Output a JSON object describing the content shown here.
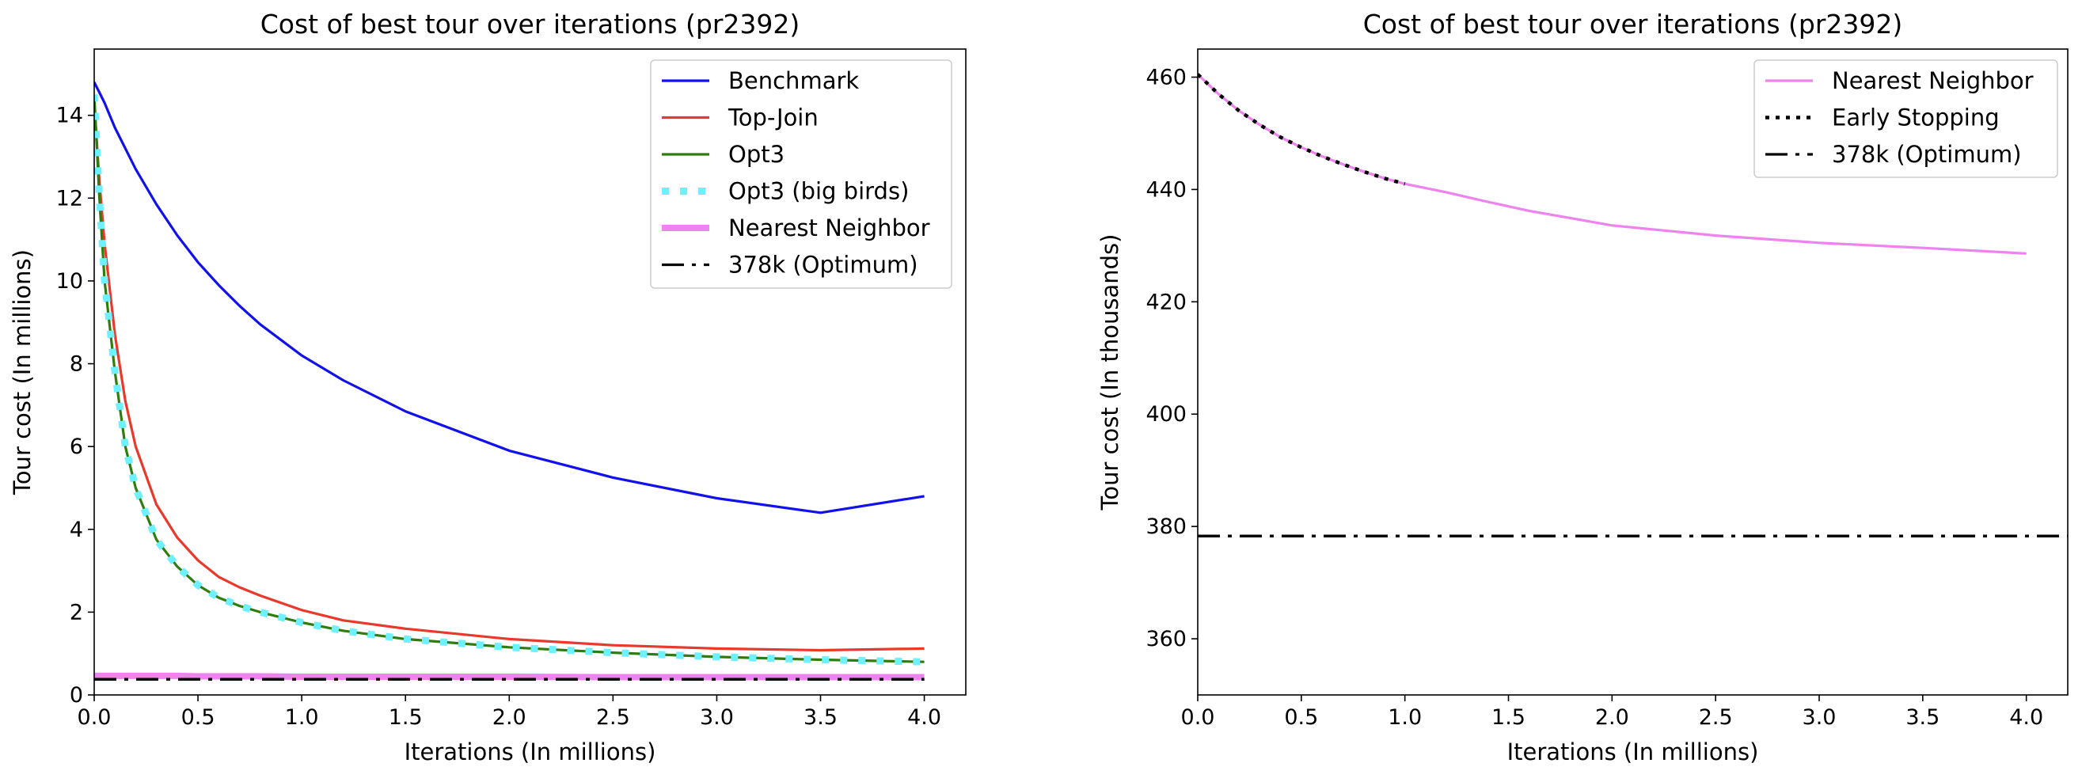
{
  "chart_data": [
    {
      "type": "line",
      "title": "Cost of best tour over iterations (pr2392)",
      "xlabel": "Iterations (In millions)",
      "ylabel": "Tour cost (In millions)",
      "xlim": [
        0,
        4.2
      ],
      "ylim": [
        0,
        15.6
      ],
      "xticks": [
        "0.0",
        "0.5",
        "1.0",
        "1.5",
        "2.0",
        "2.5",
        "3.0",
        "3.5",
        "4.0"
      ],
      "yticks": [
        "0",
        "2",
        "4",
        "6",
        "8",
        "10",
        "12",
        "14"
      ],
      "legend_position": "upper right",
      "grid": false,
      "x": [
        0,
        0.025,
        0.05,
        0.1,
        0.15,
        0.2,
        0.3,
        0.4,
        0.5,
        0.6,
        0.7,
        0.8,
        1.0,
        1.2,
        1.5,
        2.0,
        2.5,
        3.0,
        3.5,
        4.0
      ],
      "series": [
        {
          "name": "Benchmark",
          "color": "#1111ee",
          "style": "solid",
          "values": [
            14.8,
            14.55,
            14.3,
            13.7,
            13.2,
            12.7,
            11.85,
            11.1,
            10.45,
            9.9,
            9.4,
            8.95,
            8.2,
            7.6,
            6.85,
            5.9,
            5.25,
            4.75,
            4.4,
            4.8
          ]
        },
        {
          "name": "Top-Join",
          "color": "#e8392a",
          "style": "solid",
          "values": [
            14.3,
            12.4,
            10.9,
            8.7,
            7.1,
            6.0,
            4.6,
            3.8,
            3.25,
            2.85,
            2.6,
            2.4,
            2.05,
            1.8,
            1.6,
            1.35,
            1.2,
            1.12,
            1.08,
            1.12
          ]
        },
        {
          "name": "Opt3",
          "color": "#2e7d0e",
          "style": "solid",
          "values": [
            14.5,
            12.0,
            10.0,
            7.8,
            6.0,
            5.0,
            3.75,
            3.1,
            2.65,
            2.35,
            2.15,
            2.0,
            1.75,
            1.55,
            1.35,
            1.15,
            1.02,
            0.92,
            0.85,
            0.8
          ]
        },
        {
          "name": "Opt3 (big birds)",
          "color": "#6ff0ff",
          "style": "dotted",
          "values": [
            14.5,
            12.0,
            10.0,
            7.8,
            6.0,
            5.0,
            3.75,
            3.1,
            2.65,
            2.35,
            2.15,
            2.0,
            1.75,
            1.55,
            1.35,
            1.15,
            1.02,
            0.92,
            0.85,
            0.8
          ]
        },
        {
          "name": "Nearest Neighbor",
          "color": "#ee82ee",
          "style": "solid-thick",
          "values": [
            0.46,
            0.46,
            0.46,
            0.46,
            0.46,
            0.46,
            0.46,
            0.46,
            0.45,
            0.45,
            0.45,
            0.45,
            0.44,
            0.44,
            0.44,
            0.44,
            0.43,
            0.43,
            0.43,
            0.43
          ]
        },
        {
          "name": "378k (Optimum)",
          "color": "#000000",
          "style": "dashdot",
          "values": [
            0.378,
            0.378,
            0.378,
            0.378,
            0.378,
            0.378,
            0.378,
            0.378,
            0.378,
            0.378,
            0.378,
            0.378,
            0.378,
            0.378,
            0.378,
            0.378,
            0.378,
            0.378,
            0.378,
            0.378
          ]
        }
      ]
    },
    {
      "type": "line",
      "title": "Cost of best tour over iterations (pr2392)",
      "xlabel": "Iterations (In millions)",
      "ylabel": "Tour cost (In thousands)",
      "xlim": [
        0,
        4.2
      ],
      "ylim": [
        350,
        465
      ],
      "xticks": [
        "0.0",
        "0.5",
        "1.0",
        "1.5",
        "2.0",
        "2.5",
        "3.0",
        "3.5",
        "4.0"
      ],
      "yticks": [
        "360",
        "380",
        "400",
        "420",
        "440",
        "460"
      ],
      "legend_position": "upper right",
      "grid": false,
      "series": [
        {
          "name": "Nearest Neighbor",
          "color": "#ee82ee",
          "style": "solid",
          "x": [
            0,
            0.1,
            0.2,
            0.3,
            0.4,
            0.5,
            0.6,
            0.7,
            0.8,
            0.9,
            1.0,
            1.2,
            1.4,
            1.6,
            1.8,
            2.0,
            2.5,
            3.0,
            3.5,
            4.0
          ],
          "values": [
            460.5,
            457.0,
            454.0,
            451.5,
            449.3,
            447.5,
            445.9,
            444.5,
            443.2,
            442.0,
            441.0,
            439.5,
            437.8,
            436.2,
            434.9,
            433.6,
            431.8,
            430.5,
            429.6,
            428.6
          ]
        },
        {
          "name": "Early Stopping",
          "color": "#000000",
          "style": "dotted",
          "x": [
            0,
            0.1,
            0.2,
            0.3,
            0.4,
            0.5,
            0.6,
            0.7,
            0.8,
            0.9,
            1.0
          ],
          "values": [
            460.5,
            457.0,
            454.0,
            451.5,
            449.3,
            447.5,
            445.9,
            444.5,
            443.2,
            442.0,
            441.0
          ]
        },
        {
          "name": "378k (Optimum)",
          "color": "#000000",
          "style": "dashdot",
          "x": [
            0,
            4.2
          ],
          "values": [
            378.3,
            378.3
          ]
        }
      ]
    }
  ]
}
